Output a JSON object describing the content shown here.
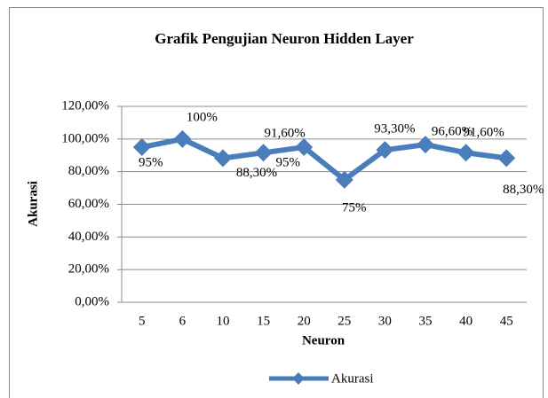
{
  "chart_data": {
    "type": "line",
    "title": "Grafik Pengujian Neuron Hidden Layer",
    "x_label": "Neuron",
    "y_label": "Akurasi",
    "categories": [
      "5",
      "6",
      "10",
      "15",
      "20",
      "25",
      "30",
      "35",
      "40",
      "45"
    ],
    "series": [
      {
        "name": "Akurasi",
        "color": "#4a7ebb",
        "values": [
          95,
          100,
          88.3,
          91.6,
          95,
          75,
          93.3,
          96.6,
          91.6,
          88.3
        ],
        "value_labels": [
          "95%",
          "100%",
          "88,30%",
          "91,60%",
          "95%",
          "75%",
          "93,30%",
          "96,60%",
          "91,60%",
          "88,30%"
        ]
      }
    ],
    "ylim": [
      0,
      120
    ],
    "yticks": [
      {
        "value": 0,
        "label": "0,00%"
      },
      {
        "value": 20,
        "label": "20,00%"
      },
      {
        "value": 40,
        "label": "40,00%"
      },
      {
        "value": 60,
        "label": "60,00%"
      },
      {
        "value": 80,
        "label": "80,00%"
      },
      {
        "value": 100,
        "label": "100,00%"
      },
      {
        "value": 120,
        "label": "120,00%"
      }
    ],
    "grid": true,
    "legend": "bottom"
  }
}
